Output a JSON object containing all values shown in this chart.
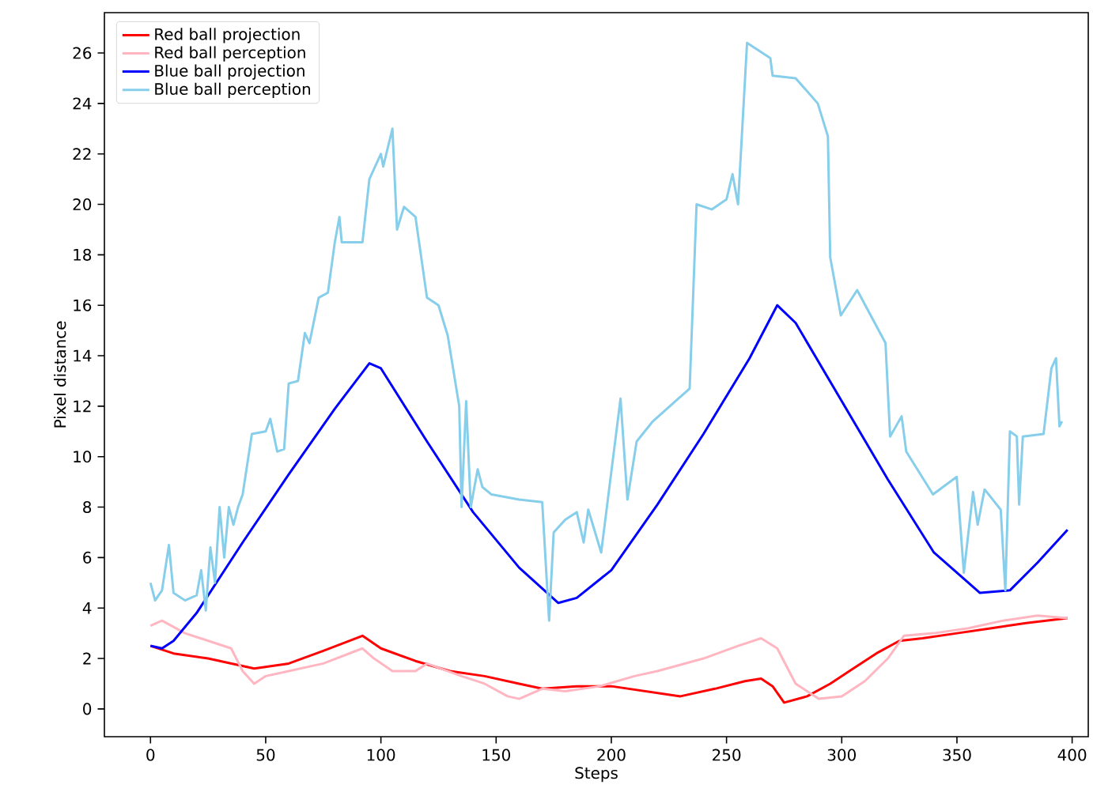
{
  "chart_data": {
    "type": "line",
    "xlabel": "Steps",
    "ylabel": "Pixel distance",
    "xlim": [
      -20,
      407
    ],
    "ylim": [
      -1.1,
      27.6
    ],
    "xticks": [
      0,
      50,
      100,
      150,
      200,
      250,
      300,
      350,
      400
    ],
    "yticks": [
      0,
      2,
      4,
      6,
      8,
      10,
      12,
      14,
      16,
      18,
      20,
      22,
      24,
      26
    ],
    "legend": "top left",
    "grid": false,
    "marker": "none",
    "line_style": "solid",
    "series": [
      {
        "name": "Red ball projection",
        "color": "#ff0000",
        "x": [
          0,
          10,
          25,
          45,
          60,
          75,
          92,
          100,
          115,
          130,
          145,
          160,
          170,
          185,
          200,
          215,
          230,
          245,
          258,
          265,
          270,
          275,
          285,
          295,
          305,
          315,
          325,
          335,
          350,
          365,
          380,
          398
        ],
        "values": [
          2.5,
          2.2,
          2.0,
          1.6,
          1.8,
          2.3,
          2.9,
          2.4,
          1.9,
          1.5,
          1.3,
          1.0,
          0.8,
          0.9,
          0.9,
          0.7,
          0.5,
          0.8,
          1.1,
          1.2,
          0.9,
          0.25,
          0.5,
          1.0,
          1.6,
          2.2,
          2.7,
          2.8,
          3.0,
          3.2,
          3.4,
          3.6
        ]
      },
      {
        "name": "Red ball perception",
        "color": "#ffb6c1",
        "x": [
          0,
          5,
          15,
          25,
          35,
          40,
          45,
          50,
          60,
          75,
          92,
          97,
          105,
          115,
          120,
          135,
          145,
          155,
          160,
          170,
          180,
          195,
          210,
          220,
          240,
          255,
          265,
          272,
          280,
          290,
          300,
          310,
          320,
          327,
          340,
          355,
          370,
          385,
          398
        ],
        "values": [
          3.3,
          3.5,
          3.0,
          2.7,
          2.4,
          1.5,
          1.0,
          1.3,
          1.5,
          1.8,
          2.4,
          2.0,
          1.5,
          1.5,
          1.8,
          1.3,
          1.0,
          0.5,
          0.4,
          0.8,
          0.7,
          0.9,
          1.3,
          1.5,
          2.0,
          2.5,
          2.8,
          2.4,
          1.0,
          0.4,
          0.5,
          1.1,
          2.0,
          2.9,
          3.0,
          3.2,
          3.5,
          3.7,
          3.6
        ]
      },
      {
        "name": "Blue ball projection",
        "color": "#0000ff",
        "x": [
          0,
          5,
          10,
          20,
          40,
          60,
          80,
          95,
          100,
          120,
          140,
          160,
          177,
          185,
          200,
          220,
          240,
          260,
          272,
          280,
          300,
          320,
          340,
          360,
          373,
          385,
          398
        ],
        "values": [
          2.5,
          2.4,
          2.7,
          3.8,
          6.6,
          9.3,
          11.9,
          13.7,
          13.5,
          10.6,
          7.8,
          5.6,
          4.2,
          4.4,
          5.5,
          8.1,
          10.9,
          13.9,
          16.0,
          15.3,
          12.2,
          9.1,
          6.2,
          4.6,
          4.7,
          5.8,
          7.1
        ]
      },
      {
        "name": "Blue ball perception",
        "color": "#87ceeb",
        "x": [
          0,
          2,
          5,
          8,
          10,
          15,
          20,
          22,
          24,
          26,
          28,
          30,
          32,
          34,
          36,
          38,
          40,
          44,
          50,
          52,
          55,
          58,
          60,
          64,
          67,
          69,
          73,
          77,
          80,
          82,
          83,
          92,
          95,
          100,
          101,
          105,
          107,
          110,
          115,
          120,
          125,
          129,
          134,
          135,
          137,
          139,
          142,
          144,
          148,
          160,
          170,
          173,
          175,
          180,
          185,
          188,
          190,
          195.6,
          204,
          207,
          211,
          218,
          234,
          237,
          243.6,
          250,
          252.6,
          255,
          258.9,
          269,
          270,
          280,
          289.6,
          294,
          295,
          299.6,
          306.7,
          319,
          321,
          326,
          328,
          339.6,
          349.9,
          353,
          357,
          359,
          362,
          369,
          371,
          373,
          376,
          377,
          378.6,
          387.6,
          391,
          393,
          394.5,
          395.6
        ],
        "values": [
          5.0,
          4.3,
          4.7,
          6.5,
          4.6,
          4.3,
          4.5,
          5.5,
          3.9,
          6.4,
          5.0,
          8.0,
          6.0,
          8.0,
          7.3,
          8.0,
          8.5,
          10.9,
          11.0,
          11.5,
          10.2,
          10.3,
          12.9,
          13.0,
          14.9,
          14.5,
          16.3,
          16.5,
          18.5,
          19.5,
          18.5,
          18.5,
          21.0,
          22.0,
          21.5,
          23.0,
          19.0,
          19.9,
          19.5,
          16.3,
          16.0,
          14.8,
          12.0,
          8.0,
          12.2,
          8.0,
          9.5,
          8.8,
          8.5,
          8.3,
          8.2,
          3.5,
          7.0,
          7.5,
          7.8,
          6.6,
          7.9,
          6.2,
          12.3,
          8.3,
          10.6,
          11.4,
          12.7,
          20.0,
          19.8,
          20.2,
          21.2,
          20.0,
          26.4,
          25.8,
          25.1,
          25.0,
          24.0,
          22.7,
          17.9,
          15.6,
          16.6,
          14.5,
          10.8,
          11.6,
          10.2,
          8.5,
          9.2,
          5.4,
          8.6,
          7.3,
          8.7,
          7.9,
          4.7,
          11.0,
          10.8,
          8.1,
          10.8,
          10.9,
          13.5,
          13.9,
          11.2,
          11.4
        ]
      }
    ]
  }
}
